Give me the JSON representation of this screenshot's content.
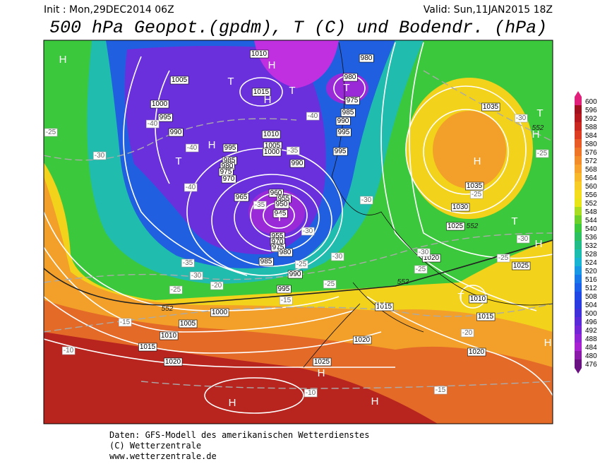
{
  "header": {
    "init": "Init : Mon,29DEC2014 06Z",
    "valid": "Valid: Sun,11JAN2015 18Z",
    "title": "500 hPa Geopot.(gpdm), T (C) und Bodendr. (hPa)"
  },
  "map": {
    "pressure_labels": [
      1010,
      980,
      980,
      975,
      1005,
      1015,
      1000,
      995,
      990,
      985,
      990,
      995,
      1010,
      1005,
      1000,
      995,
      995,
      990,
      985,
      980,
      975,
      970,
      965,
      960,
      955,
      950,
      945,
      955,
      970,
      975,
      980,
      985,
      990,
      995,
      1000,
      1005,
      1010,
      1015,
      1020,
      1025,
      1015,
      1020,
      1010,
      1015,
      1020,
      1020,
      1025,
      1025,
      1030,
      1035,
      1035
    ],
    "temperature_labels": [
      -25,
      -30,
      -40,
      -40,
      -40,
      -35,
      -30,
      -25,
      -20,
      -15,
      -10,
      -35,
      -30,
      -25,
      -30,
      -25,
      -20,
      -15,
      -10,
      -30,
      -30,
      -25,
      -25,
      -30,
      -25,
      -30,
      -25,
      -40,
      -35,
      -15
    ],
    "pressure_centers": [
      "H",
      "H",
      "T",
      "T",
      "H",
      "T",
      "H",
      "T",
      "T",
      "H",
      "T",
      "H",
      "T",
      "H",
      "T",
      "H",
      "H",
      "H",
      "H",
      "H"
    ],
    "contour_552_labels": [
      552,
      552,
      552,
      552
    ]
  },
  "colorbar": {
    "levels": [
      600,
      596,
      592,
      588,
      584,
      580,
      576,
      572,
      568,
      564,
      560,
      556,
      552,
      548,
      544,
      540,
      536,
      532,
      528,
      524,
      520,
      516,
      512,
      508,
      504,
      500,
      496,
      492,
      488,
      484,
      480,
      476
    ],
    "colors": [
      "#e0207a",
      "#a0101e",
      "#b4181e",
      "#c82820",
      "#dc3c22",
      "#e85a26",
      "#ee7428",
      "#f28c2a",
      "#f6a22c",
      "#f8b82c",
      "#f8cc26",
      "#f4dc1e",
      "#e8e41a",
      "#a8dc22",
      "#6cd02a",
      "#3cc83c",
      "#2cc062",
      "#22bc88",
      "#1cbcae",
      "#18b4d2",
      "#1898e4",
      "#1878ea",
      "#1a5eea",
      "#2048e4",
      "#2a3ade",
      "#4030da",
      "#5a2ad8",
      "#7426d6",
      "#9024d4",
      "#a822d2",
      "#8a1aa8",
      "#6a1282"
    ]
  },
  "footer": {
    "source": "Daten: GFS-Modell des amerikanischen Wetterdienstes",
    "copyright": "(C) Wetterzentrale",
    "url": "www.wetterzentrale.de"
  }
}
